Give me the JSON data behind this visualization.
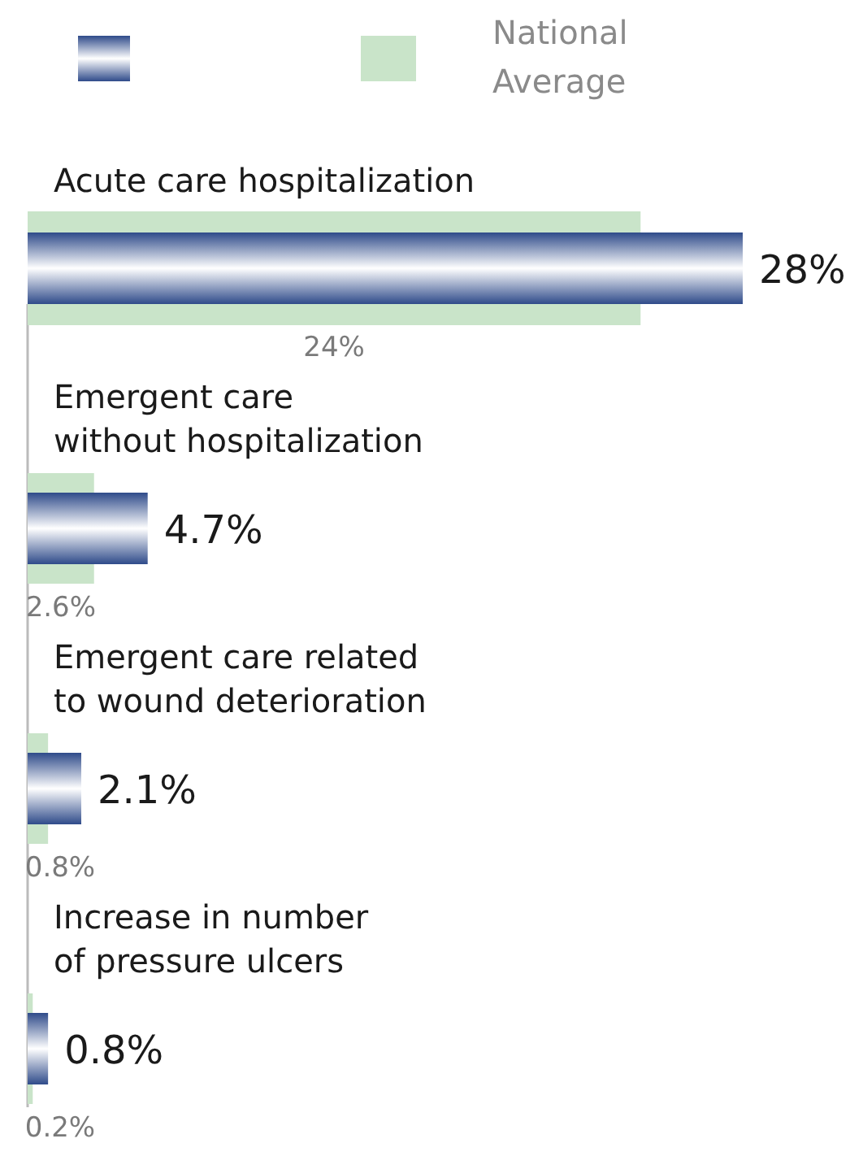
{
  "chart_data": {
    "type": "bar",
    "orientation": "horizontal",
    "legend": "top",
    "categories": [
      "Acute care hospitalization",
      "Emergent care\nwithout hospitalization",
      "Emergent care related\nto wound deterioration",
      "Increase in number\nof pressure ulcers"
    ],
    "series": [
      {
        "color": "#2f4b8a",
        "values": [
          28,
          4.7,
          2.1,
          0.8
        ],
        "value_labels": [
          "28%",
          "4.7%",
          "2.1%",
          "0.8%"
        ]
      },
      {
        "name": "National Average",
        "color": "#c9e4c9",
        "values": [
          24,
          2.6,
          0.8,
          0.2
        ],
        "value_labels": [
          "24%",
          "2.6%",
          "0.8%",
          "0.2%"
        ]
      }
    ]
  }
}
